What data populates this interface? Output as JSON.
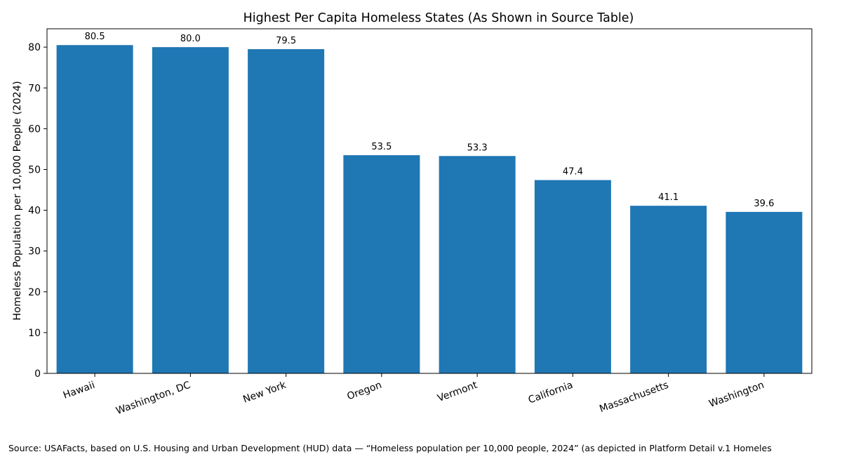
{
  "chart_data": {
    "type": "bar",
    "title": "Highest Per Capita Homeless States (As Shown in Source Table)",
    "xlabel": "",
    "ylabel": "Homeless Population per 10,000 People (2024)",
    "categories": [
      "Hawaii",
      "Washington, DC",
      "New York",
      "Oregon",
      "Vermont",
      "California",
      "Massachusetts",
      "Washington"
    ],
    "values": [
      80.5,
      80.0,
      79.5,
      53.5,
      53.3,
      47.4,
      41.1,
      39.6
    ],
    "value_labels": [
      "80.5",
      "80.0",
      "79.5",
      "53.5",
      "53.3",
      "47.4",
      "41.1",
      "39.6"
    ],
    "ylim": [
      0,
      84.5
    ],
    "yticks": [
      0,
      10,
      20,
      30,
      40,
      50,
      60,
      70,
      80
    ],
    "grid": false,
    "bar_color": "#1f77b4",
    "x_tick_rotation_deg": -20
  },
  "source_note": "Source: USAFacts, based on U.S. Housing and Urban Development (HUD) data — “Homeless population per 10,000 people, 2024” (as depicted in Platform Detail v.1 Homeles"
}
